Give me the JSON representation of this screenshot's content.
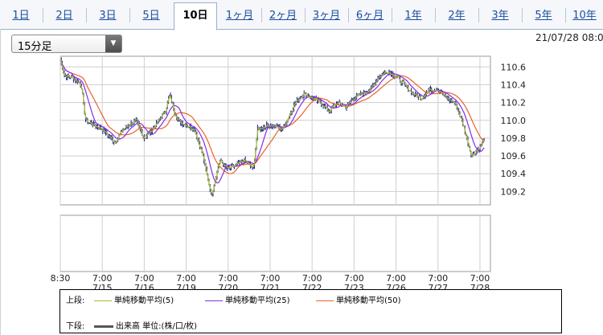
{
  "tabs": [
    {
      "label": "1日",
      "active": false
    },
    {
      "label": "2日",
      "active": false
    },
    {
      "label": "3日",
      "active": false
    },
    {
      "label": "5日",
      "active": false
    },
    {
      "label": "10日",
      "active": true
    },
    {
      "label": "1ヶ月",
      "active": false
    },
    {
      "label": "2ヶ月",
      "active": false
    },
    {
      "label": "3ヶ月",
      "active": false
    },
    {
      "label": "6ヶ月",
      "active": false
    },
    {
      "label": "1年",
      "active": false
    },
    {
      "label": "2年",
      "active": false
    },
    {
      "label": "3年",
      "active": false
    },
    {
      "label": "5年",
      "active": false
    },
    {
      "label": "10年",
      "active": false
    }
  ],
  "interval_select": {
    "value": "15分足"
  },
  "timestamp": "21/07/28 08:0",
  "colors": {
    "candle": "#1a1a8c",
    "ma5": "#a6c02a",
    "ma25": "#8a2be2",
    "ma50": "#e8622a",
    "volume": "#555555"
  },
  "chart_data": {
    "type": "line",
    "ylim": [
      109.05,
      110.72
    ],
    "yticks": [
      109.2,
      109.4,
      109.6,
      109.8,
      110.0,
      110.2,
      110.4,
      110.6
    ],
    "ytick_labels": [
      "109.2",
      "109.4",
      "109.6",
      "109.8",
      "110.0",
      "110.2",
      "110.4",
      "110.6"
    ],
    "xlim": [
      0,
      10.25
    ],
    "xticks": [
      {
        "x": 0,
        "label": [
          "8:30",
          ""
        ]
      },
      {
        "x": 1,
        "label": [
          "7:00",
          "7/15"
        ]
      },
      {
        "x": 2,
        "label": [
          "7:00",
          "7/16"
        ]
      },
      {
        "x": 3,
        "label": [
          "7:00",
          "7/19"
        ]
      },
      {
        "x": 4,
        "label": [
          "7:00",
          "7/20"
        ]
      },
      {
        "x": 5,
        "label": [
          "7:00",
          "7/21"
        ]
      },
      {
        "x": 6,
        "label": [
          "7:00",
          "7/22"
        ]
      },
      {
        "x": 7,
        "label": [
          "7:00",
          "7/23"
        ]
      },
      {
        "x": 8,
        "label": [
          "7:00",
          "7/26"
        ]
      },
      {
        "x": 9,
        "label": [
          "7:00",
          "7/27"
        ]
      },
      {
        "x": 10,
        "label": [
          "7:00",
          "7/28"
        ]
      }
    ],
    "price_path": [
      [
        0,
        110.68
      ],
      [
        0.1,
        110.5
      ],
      [
        0.3,
        110.48
      ],
      [
        0.5,
        110.4
      ],
      [
        0.6,
        110.0
      ],
      [
        0.8,
        109.95
      ],
      [
        1.0,
        109.9
      ],
      [
        1.3,
        109.75
      ],
      [
        1.5,
        109.9
      ],
      [
        1.8,
        110.0
      ],
      [
        2.0,
        109.8
      ],
      [
        2.2,
        109.9
      ],
      [
        2.5,
        110.1
      ],
      [
        2.6,
        110.28
      ],
      [
        2.8,
        110.0
      ],
      [
        3.0,
        109.95
      ],
      [
        3.2,
        109.9
      ],
      [
        3.4,
        109.6
      ],
      [
        3.6,
        109.15
      ],
      [
        3.8,
        109.55
      ],
      [
        4.0,
        109.45
      ],
      [
        4.2,
        109.5
      ],
      [
        4.4,
        109.55
      ],
      [
        4.6,
        109.45
      ],
      [
        4.7,
        109.9
      ],
      [
        5.0,
        109.95
      ],
      [
        5.3,
        109.9
      ],
      [
        5.6,
        110.2
      ],
      [
        5.8,
        110.3
      ],
      [
        6.0,
        110.25
      ],
      [
        6.2,
        110.2
      ],
      [
        6.4,
        110.1
      ],
      [
        6.6,
        110.2
      ],
      [
        6.8,
        110.15
      ],
      [
        7.0,
        110.25
      ],
      [
        7.2,
        110.3
      ],
      [
        7.4,
        110.35
      ],
      [
        7.6,
        110.5
      ],
      [
        7.8,
        110.55
      ],
      [
        8.0,
        110.5
      ],
      [
        8.2,
        110.4
      ],
      [
        8.4,
        110.3
      ],
      [
        8.6,
        110.25
      ],
      [
        8.8,
        110.35
      ],
      [
        9.0,
        110.35
      ],
      [
        9.2,
        110.25
      ],
      [
        9.4,
        110.2
      ],
      [
        9.6,
        109.95
      ],
      [
        9.8,
        109.6
      ],
      [
        10.0,
        109.7
      ],
      [
        10.1,
        109.8
      ]
    ],
    "series": [
      {
        "name": "単純移動平均(5)",
        "smoothing": 5
      },
      {
        "name": "単純移動平均(25)",
        "smoothing": 25
      },
      {
        "name": "単純移動平均(50)",
        "smoothing": 50
      }
    ],
    "volume_series": {
      "name": "出来高 単位:(株/口/枚)"
    }
  },
  "legend": {
    "upper_label": "上段:",
    "lower_label": "下段:",
    "ma5": "単純移動平均(5)",
    "ma25": "単純移動平均(25)",
    "ma50": "単純移動平均(50)",
    "volume": "出来高 単位:(株/口/枚)"
  }
}
